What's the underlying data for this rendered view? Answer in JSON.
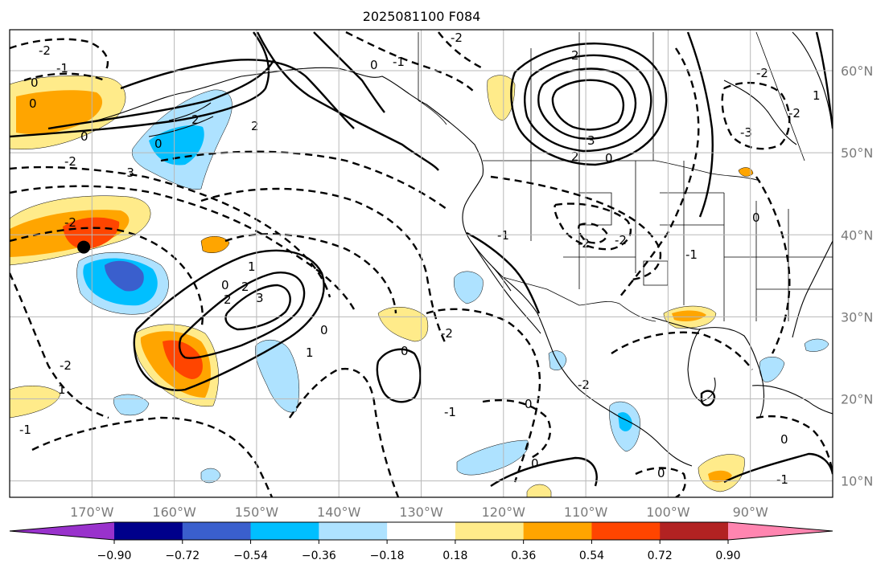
{
  "title": "2025081100 F084",
  "map": {
    "lon_min": -180,
    "lon_max": -80,
    "lat_min": 8,
    "lat_max": 65,
    "lon_ticks": [
      "170°W",
      "160°W",
      "150°W",
      "140°W",
      "130°W",
      "120°W",
      "110°W",
      "100°W",
      "90°W"
    ],
    "lat_ticks": [
      "10°N",
      "20°N",
      "30°N",
      "40°N",
      "50°N",
      "60°N"
    ],
    "grid": true,
    "marker": {
      "name": "point-marker",
      "lon": -171,
      "lat": 38.5,
      "color": "#000000"
    }
  },
  "colorbar": {
    "levels": [
      "−0.90",
      "−0.72",
      "−0.54",
      "−0.36",
      "−0.18",
      "0.18",
      "0.36",
      "0.54",
      "0.72",
      "0.90"
    ],
    "colors": [
      "#9932cc",
      "#00008b",
      "#3a5fcd",
      "#00bfff",
      "#aee2ff",
      "#ffffff",
      "#ffeb8a",
      "#ffa500",
      "#ff4500",
      "#b22222",
      "#ff85b0"
    ],
    "extend": "both"
  },
  "contour_labels": [
    "0",
    "1",
    "2",
    "3",
    "-1",
    "-2",
    "-3"
  ],
  "colors": {
    "positive": "#ffa500",
    "strong_positive": "#ff4500",
    "negative": "#00bfff",
    "strong_negative": "#3a5fcd"
  }
}
